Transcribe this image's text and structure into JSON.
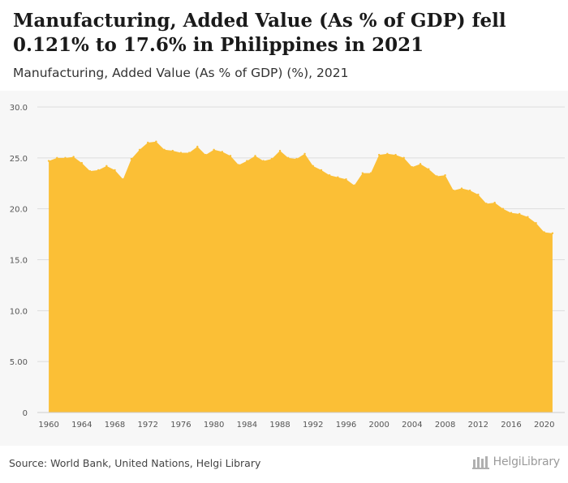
{
  "header": {
    "title": "Manufacturing, Added Value (As % of GDP) fell 0.121% to 17.6% in Philippines in 2021",
    "subtitle": "Manufacturing, Added Value (As % of GDP) (%), 2021"
  },
  "footer": {
    "source": "Source: World Bank, United Nations, Helgi Library",
    "brand": "HelgiLibrary"
  },
  "colors": {
    "area": "#fbbf36",
    "grid": "#dddddd",
    "tick_text": "#555555"
  },
  "chart_data": {
    "type": "area",
    "title": "Manufacturing, Added Value (As % of GDP) fell 0.121% to 17.6% in Philippines in 2021",
    "subtitle": "Manufacturing, Added Value (As % of GDP) (%), 2021",
    "xlabel": "",
    "ylabel": "",
    "ylim": [
      0,
      30
    ],
    "yticks": [
      0,
      5,
      10,
      15,
      20,
      25,
      30
    ],
    "ytick_labels": [
      "0",
      "5.00",
      "10.0",
      "15.0",
      "20.0",
      "25.0",
      "30.0"
    ],
    "xticks": [
      1960,
      1964,
      1968,
      1972,
      1976,
      1980,
      1984,
      1988,
      1992,
      1996,
      2000,
      2004,
      2008,
      2012,
      2016,
      2020
    ],
    "grid": true,
    "legend": "none",
    "series": [
      {
        "x": [
          1960,
          1961,
          1962,
          1963,
          1964,
          1965,
          1966,
          1967,
          1968,
          1969,
          1970,
          1971,
          1972,
          1973,
          1974,
          1975,
          1976,
          1977,
          1978,
          1979,
          1980,
          1981,
          1982,
          1983,
          1984,
          1985,
          1986,
          1987,
          1988,
          1989,
          1990,
          1991,
          1992,
          1993,
          1994,
          1995,
          1996,
          1997,
          1998,
          1999,
          2000,
          2001,
          2002,
          2003,
          2004,
          2005,
          2006,
          2007,
          2008,
          2009,
          2010,
          2011,
          2012,
          2013,
          2014,
          2015,
          2016,
          2017,
          2018,
          2019,
          2020,
          2021
        ],
        "values": [
          24.7,
          25.0,
          25.0,
          25.1,
          24.5,
          23.7,
          23.8,
          24.2,
          23.8,
          22.9,
          24.9,
          25.8,
          26.5,
          26.6,
          25.8,
          25.7,
          25.5,
          25.5,
          26.1,
          25.3,
          25.8,
          25.6,
          25.2,
          24.3,
          24.7,
          25.2,
          24.7,
          24.9,
          25.7,
          25.0,
          24.9,
          25.4,
          24.2,
          23.8,
          23.3,
          23.1,
          22.9,
          22.3,
          23.5,
          23.5,
          25.3,
          25.4,
          25.3,
          25.0,
          24.1,
          24.4,
          23.9,
          23.2,
          23.3,
          21.8,
          22.0,
          21.8,
          21.4,
          20.5,
          20.6,
          20.0,
          19.6,
          19.5,
          19.2,
          18.6,
          17.7,
          17.6
        ]
      }
    ]
  }
}
